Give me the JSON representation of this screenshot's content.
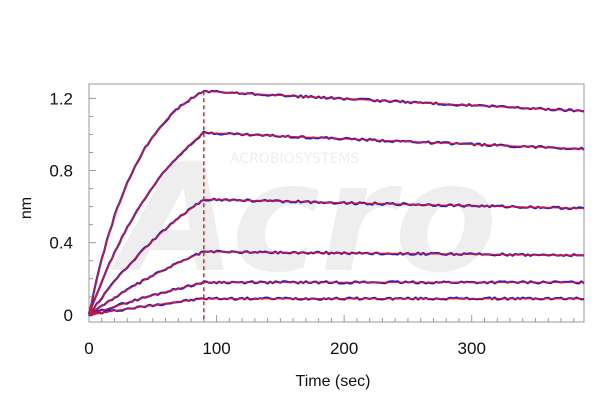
{
  "chart_data": {
    "type": "line",
    "title": "",
    "xlabel": "Time (sec)",
    "ylabel": "nm",
    "xlim": [
      0,
      388
    ],
    "ylim": [
      -0.04,
      1.28
    ],
    "xticks": [
      0,
      100,
      200,
      300
    ],
    "yticks": [
      0,
      0.4,
      0.8,
      1.2
    ],
    "xtick_labels": [
      "0",
      "100",
      "200",
      "300"
    ],
    "ytick_labels": [
      "0",
      "0.4",
      "0.8",
      "1.2"
    ],
    "grid": false,
    "legend": "none",
    "dissociation_start": 90,
    "curves": [
      {
        "peak": 1.24,
        "end": 1.13,
        "k_assoc": 0.025
      },
      {
        "peak": 1.01,
        "end": 0.92,
        "k_assoc": 0.014
      },
      {
        "peak": 0.64,
        "end": 0.59,
        "k_assoc": 0.008
      },
      {
        "peak": 0.35,
        "end": 0.33,
        "k_assoc": 0.006
      },
      {
        "peak": 0.18,
        "end": 0.18,
        "k_assoc": 0.004
      },
      {
        "peak": 0.09,
        "end": 0.09,
        "k_assoc": 0.003
      }
    ],
    "colors": {
      "data": "#1f1fe0",
      "fit": "#e8141a",
      "marker": "#e8141a",
      "axis": "#9a9a9a"
    }
  },
  "watermark": {
    "text": "Acro",
    "subtext": "ACROBIOSYSTEMS"
  }
}
